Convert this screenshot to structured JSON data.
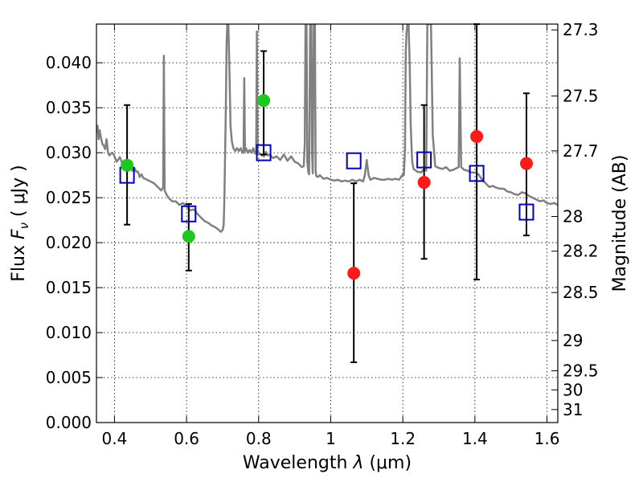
{
  "chart_data": {
    "type": "scatter",
    "xlabel_prefix": "Wavelength",
    "xlabel_symbol": "λ",
    "xlabel_unit": "(μm)",
    "ylabel_prefix": "Flux",
    "ylabel_symbol": "F",
    "ylabel_subscript": "ν",
    "ylabel_unit": "( μJy )",
    "ylabel_right": "Magnitude (AB)",
    "xlim": [
      0.35,
      1.63
    ],
    "ylim": [
      0.0,
      0.0443
    ],
    "grid": true,
    "x_ticks": [
      {
        "value": 0.4,
        "label": "0.4"
      },
      {
        "value": 0.6,
        "label": "0.6"
      },
      {
        "value": 0.8,
        "label": "0.8"
      },
      {
        "value": 1.0,
        "label": "1"
      },
      {
        "value": 1.2,
        "label": "1.2"
      },
      {
        "value": 1.4,
        "label": "1.4"
      },
      {
        "value": 1.6,
        "label": "1.6"
      }
    ],
    "y_ticks": [
      {
        "value": 0.0,
        "label": "0.000"
      },
      {
        "value": 0.005,
        "label": "0.005"
      },
      {
        "value": 0.01,
        "label": "0.010"
      },
      {
        "value": 0.015,
        "label": "0.015"
      },
      {
        "value": 0.02,
        "label": "0.020"
      },
      {
        "value": 0.025,
        "label": "0.025"
      },
      {
        "value": 0.03,
        "label": "0.030"
      },
      {
        "value": 0.035,
        "label": "0.035"
      },
      {
        "value": 0.04,
        "label": "0.040"
      }
    ],
    "right_ticks": [
      {
        "value": 27.3,
        "label": "27.3"
      },
      {
        "value": 27.5,
        "label": "27.5"
      },
      {
        "value": 27.7,
        "label": "27.7"
      },
      {
        "value": 28.0,
        "label": "28"
      },
      {
        "value": 28.2,
        "label": "28.2"
      },
      {
        "value": 28.5,
        "label": "28.5"
      },
      {
        "value": 29.0,
        "label": "29"
      },
      {
        "value": 29.5,
        "label": "29.5"
      },
      {
        "value": 30.0,
        "label": "30"
      },
      {
        "value": 31.0,
        "label": "31"
      }
    ],
    "spectrum": {
      "color": "#808080",
      "points": [
        [
          0.35,
          0.0322
        ],
        [
          0.353,
          0.033
        ],
        [
          0.356,
          0.0315
        ],
        [
          0.359,
          0.0325
        ],
        [
          0.362,
          0.0318
        ],
        [
          0.366,
          0.031
        ],
        [
          0.37,
          0.0308
        ],
        [
          0.374,
          0.0304
        ],
        [
          0.378,
          0.0315
        ],
        [
          0.382,
          0.03
        ],
        [
          0.386,
          0.0297
        ],
        [
          0.39,
          0.0299
        ],
        [
          0.394,
          0.03
        ],
        [
          0.398,
          0.0298
        ],
        [
          0.402,
          0.0294
        ],
        [
          0.406,
          0.029
        ],
        [
          0.41,
          0.0292
        ],
        [
          0.415,
          0.0295
        ],
        [
          0.42,
          0.029
        ],
        [
          0.425,
          0.0284
        ],
        [
          0.43,
          0.0281
        ],
        [
          0.435,
          0.0284
        ],
        [
          0.44,
          0.0282
        ],
        [
          0.445,
          0.0286
        ],
        [
          0.45,
          0.028
        ],
        [
          0.455,
          0.0283
        ],
        [
          0.46,
          0.0279
        ],
        [
          0.465,
          0.0279
        ],
        [
          0.47,
          0.0273
        ],
        [
          0.475,
          0.0276
        ],
        [
          0.48,
          0.0272
        ],
        [
          0.49,
          0.027
        ],
        [
          0.5,
          0.0268
        ],
        [
          0.51,
          0.0266
        ],
        [
          0.52,
          0.0262
        ],
        [
          0.53,
          0.0258
        ],
        [
          0.535,
          0.0262
        ],
        [
          0.537,
          0.0408
        ],
        [
          0.539,
          0.0258
        ],
        [
          0.545,
          0.0253
        ],
        [
          0.55,
          0.025
        ],
        [
          0.56,
          0.0246
        ],
        [
          0.57,
          0.0246
        ],
        [
          0.58,
          0.0242
        ],
        [
          0.59,
          0.0244
        ],
        [
          0.6,
          0.0241
        ],
        [
          0.61,
          0.0236
        ],
        [
          0.62,
          0.0237
        ],
        [
          0.63,
          0.0232
        ],
        [
          0.64,
          0.0228
        ],
        [
          0.65,
          0.0224
        ],
        [
          0.66,
          0.0222
        ],
        [
          0.67,
          0.0219
        ],
        [
          0.68,
          0.0217
        ],
        [
          0.69,
          0.0214
        ],
        [
          0.695,
          0.0212
        ],
        [
          0.7,
          0.0214
        ],
        [
          0.703,
          0.022
        ],
        [
          0.705,
          0.025
        ],
        [
          0.707,
          0.03
        ],
        [
          0.709,
          0.035
        ],
        [
          0.711,
          0.042
        ],
        [
          0.713,
          0.0443
        ],
        [
          0.716,
          0.0443
        ],
        [
          0.719,
          0.039
        ],
        [
          0.722,
          0.033
        ],
        [
          0.726,
          0.0312
        ],
        [
          0.73,
          0.0305
        ],
        [
          0.735,
          0.0302
        ],
        [
          0.74,
          0.0305
        ],
        [
          0.745,
          0.0302
        ],
        [
          0.75,
          0.0305
        ],
        [
          0.755,
          0.03
        ],
        [
          0.758,
          0.03
        ],
        [
          0.76,
          0.0383
        ],
        [
          0.762,
          0.0302
        ],
        [
          0.765,
          0.0305
        ],
        [
          0.77,
          0.03
        ],
        [
          0.775,
          0.0303
        ],
        [
          0.78,
          0.03
        ],
        [
          0.785,
          0.0305
        ],
        [
          0.79,
          0.0299
        ],
        [
          0.793,
          0.03
        ],
        [
          0.795,
          0.0435
        ],
        [
          0.797,
          0.0298
        ],
        [
          0.8,
          0.03
        ],
        [
          0.805,
          0.0298
        ],
        [
          0.81,
          0.0297
        ],
        [
          0.815,
          0.0296
        ],
        [
          0.82,
          0.0301
        ],
        [
          0.825,
          0.0297
        ],
        [
          0.83,
          0.0298
        ],
        [
          0.835,
          0.0296
        ],
        [
          0.84,
          0.0294
        ],
        [
          0.85,
          0.0296
        ],
        [
          0.86,
          0.0292
        ],
        [
          0.87,
          0.0298
        ],
        [
          0.88,
          0.0291
        ],
        [
          0.89,
          0.0296
        ],
        [
          0.9,
          0.029
        ],
        [
          0.91,
          0.0288
        ],
        [
          0.92,
          0.0284
        ],
        [
          0.925,
          0.0285
        ],
        [
          0.928,
          0.031
        ],
        [
          0.93,
          0.0443
        ],
        [
          0.933,
          0.0443
        ],
        [
          0.935,
          0.029
        ],
        [
          0.938,
          0.0278
        ],
        [
          0.94,
          0.0276
        ],
        [
          0.943,
          0.0443
        ],
        [
          0.946,
          0.0443
        ],
        [
          0.948,
          0.03
        ],
        [
          0.95,
          0.0277
        ],
        [
          0.953,
          0.0443
        ],
        [
          0.956,
          0.0443
        ],
        [
          0.958,
          0.028
        ],
        [
          0.96,
          0.0274
        ],
        [
          0.965,
          0.0273
        ],
        [
          0.97,
          0.0275
        ],
        [
          0.98,
          0.0271
        ],
        [
          0.99,
          0.0272
        ],
        [
          1.0,
          0.027
        ],
        [
          1.01,
          0.0269
        ],
        [
          1.02,
          0.027
        ],
        [
          1.03,
          0.0268
        ],
        [
          1.04,
          0.0269
        ],
        [
          1.05,
          0.0268
        ],
        [
          1.06,
          0.027
        ],
        [
          1.07,
          0.0268
        ],
        [
          1.08,
          0.027
        ],
        [
          1.09,
          0.0268
        ],
        [
          1.095,
          0.0276
        ],
        [
          1.1,
          0.0292
        ],
        [
          1.105,
          0.0275
        ],
        [
          1.11,
          0.027
        ],
        [
          1.12,
          0.0272
        ],
        [
          1.13,
          0.0271
        ],
        [
          1.14,
          0.027
        ],
        [
          1.15,
          0.027
        ],
        [
          1.16,
          0.0271
        ],
        [
          1.17,
          0.027
        ],
        [
          1.18,
          0.0271
        ],
        [
          1.19,
          0.027
        ],
        [
          1.2,
          0.0276
        ],
        [
          1.203,
          0.0275
        ],
        [
          1.206,
          0.0305
        ],
        [
          1.208,
          0.041
        ],
        [
          1.21,
          0.0433
        ],
        [
          1.213,
          0.0443
        ],
        [
          1.216,
          0.0443
        ],
        [
          1.219,
          0.04
        ],
        [
          1.222,
          0.033
        ],
        [
          1.226,
          0.029
        ],
        [
          1.23,
          0.0282
        ],
        [
          1.24,
          0.0279
        ],
        [
          1.25,
          0.0278
        ],
        [
          1.26,
          0.0282
        ],
        [
          1.265,
          0.028
        ],
        [
          1.268,
          0.0443
        ],
        [
          1.272,
          0.0443
        ],
        [
          1.275,
          0.0443
        ],
        [
          1.278,
          0.0443
        ],
        [
          1.28,
          0.04
        ],
        [
          1.283,
          0.032
        ],
        [
          1.29,
          0.0285
        ],
        [
          1.3,
          0.0283
        ],
        [
          1.31,
          0.0282
        ],
        [
          1.32,
          0.0284
        ],
        [
          1.33,
          0.028
        ],
        [
          1.34,
          0.0281
        ],
        [
          1.35,
          0.0283
        ],
        [
          1.355,
          0.0284
        ],
        [
          1.358,
          0.0405
        ],
        [
          1.362,
          0.0284
        ],
        [
          1.37,
          0.0281
        ],
        [
          1.38,
          0.028
        ],
        [
          1.39,
          0.0278
        ],
        [
          1.4,
          0.0278
        ],
        [
          1.41,
          0.0276
        ],
        [
          1.42,
          0.027
        ],
        [
          1.43,
          0.0266
        ],
        [
          1.44,
          0.0262
        ],
        [
          1.45,
          0.0263
        ],
        [
          1.46,
          0.0261
        ],
        [
          1.47,
          0.026
        ],
        [
          1.48,
          0.026
        ],
        [
          1.49,
          0.0257
        ],
        [
          1.5,
          0.0256
        ],
        [
          1.51,
          0.0254
        ],
        [
          1.52,
          0.0253
        ],
        [
          1.53,
          0.0256
        ],
        [
          1.54,
          0.0255
        ],
        [
          1.55,
          0.0252
        ],
        [
          1.56,
          0.025
        ],
        [
          1.57,
          0.0248
        ],
        [
          1.58,
          0.0246
        ],
        [
          1.59,
          0.0247
        ],
        [
          1.6,
          0.0244
        ],
        [
          1.61,
          0.0243
        ],
        [
          1.62,
          0.0244
        ],
        [
          1.63,
          0.0242
        ]
      ]
    },
    "model_points": [
      {
        "x": 0.435,
        "y": 0.0275
      },
      {
        "x": 0.606,
        "y": 0.0232
      },
      {
        "x": 0.814,
        "y": 0.03
      },
      {
        "x": 1.064,
        "y": 0.0291
      },
      {
        "x": 1.259,
        "y": 0.0292
      },
      {
        "x": 1.405,
        "y": 0.0277
      },
      {
        "x": 1.543,
        "y": 0.0234
      }
    ],
    "observed_points": [
      {
        "x": 0.435,
        "y": 0.0286,
        "y_low": 0.022,
        "y_high": 0.0353,
        "color": "#1ec81e"
      },
      {
        "x": 0.606,
        "y": 0.0207,
        "y_low": 0.0169,
        "y_high": 0.0243,
        "color": "#1ec81e"
      },
      {
        "x": 0.814,
        "y": 0.0358,
        "y_low": 0.0298,
        "y_high": 0.0413,
        "color": "#1ec81e"
      },
      {
        "x": 1.064,
        "y": 0.0166,
        "y_low": 0.0067,
        "y_high": 0.0266,
        "color": "#ff1a1a"
      },
      {
        "x": 1.259,
        "y": 0.0267,
        "y_low": 0.0182,
        "y_high": 0.0353,
        "color": "#ff1a1a"
      },
      {
        "x": 1.405,
        "y": 0.0318,
        "y_low": 0.0159,
        "y_high": 0.0443,
        "color": "#ff1a1a"
      },
      {
        "x": 1.543,
        "y": 0.0288,
        "y_low": 0.0208,
        "y_high": 0.0366,
        "color": "#ff1a1a"
      }
    ],
    "model_color": "#0000b4"
  }
}
